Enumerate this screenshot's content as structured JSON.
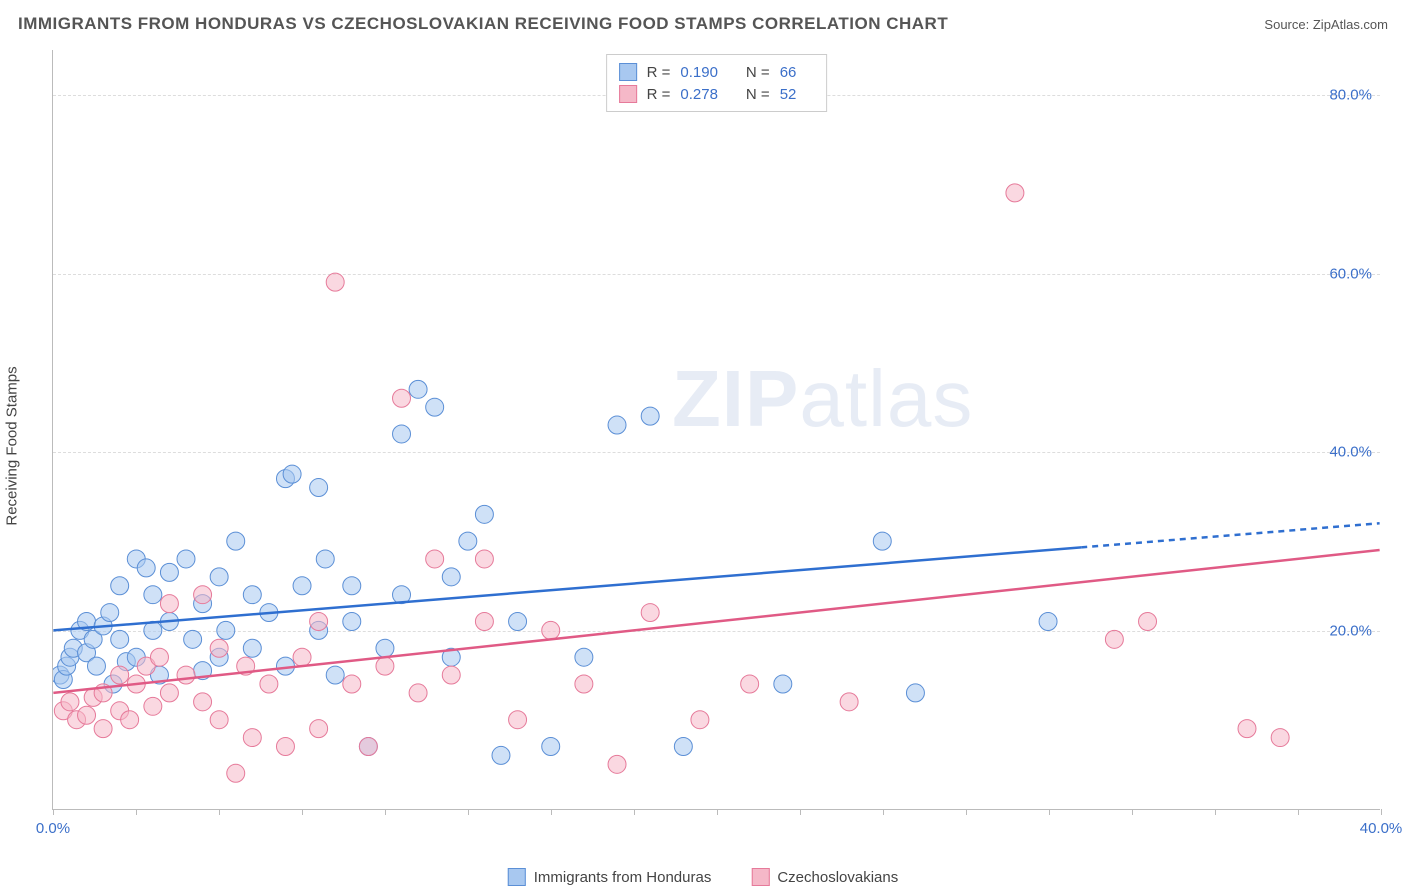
{
  "header": {
    "title": "IMMIGRANTS FROM HONDURAS VS CZECHOSLOVAKIAN RECEIVING FOOD STAMPS CORRELATION CHART",
    "source_label": "Source:",
    "source_name": "ZipAtlas.com"
  },
  "watermark": {
    "zip": "ZIP",
    "atlas": "atlas"
  },
  "chart": {
    "type": "scatter",
    "y_axis_label": "Receiving Food Stamps",
    "background_color": "#ffffff",
    "grid_color": "#dddddd",
    "axis_color": "#bbbbbb",
    "tick_label_color": "#3b6fc9",
    "xlim": [
      0,
      40
    ],
    "ylim": [
      0,
      85
    ],
    "x_ticks": [
      {
        "value": 0,
        "label": "0.0%"
      },
      {
        "value": 40,
        "label": "40.0%"
      }
    ],
    "y_ticks": [
      {
        "value": 20,
        "label": "20.0%"
      },
      {
        "value": 40,
        "label": "40.0%"
      },
      {
        "value": 60,
        "label": "60.0%"
      },
      {
        "value": 80,
        "label": "80.0%"
      }
    ],
    "x_minor_tick_step": 2.5,
    "marker_radius": 9,
    "marker_opacity": 0.55,
    "series": [
      {
        "name": "Immigrants from Honduras",
        "fill_color": "#a8c8f0",
        "stroke_color": "#5b8fd6",
        "line_color": "#2f6fd0",
        "line_width": 2.5,
        "r_label": "R =",
        "r_value": "0.190",
        "n_label": "N =",
        "n_value": "66",
        "trend": {
          "x1": 0,
          "y1": 20,
          "x2": 40,
          "y2": 32,
          "dash_after_x": 31
        },
        "points": [
          [
            0.2,
            15
          ],
          [
            0.3,
            14.5
          ],
          [
            0.4,
            16
          ],
          [
            0.5,
            17
          ],
          [
            0.6,
            18
          ],
          [
            0.8,
            20
          ],
          [
            1.0,
            17.5
          ],
          [
            1.0,
            21
          ],
          [
            1.2,
            19
          ],
          [
            1.3,
            16
          ],
          [
            1.5,
            20.5
          ],
          [
            1.7,
            22
          ],
          [
            1.8,
            14
          ],
          [
            2.0,
            25
          ],
          [
            2.0,
            19
          ],
          [
            2.2,
            16.5
          ],
          [
            2.5,
            28
          ],
          [
            2.5,
            17
          ],
          [
            2.8,
            27
          ],
          [
            3.0,
            20
          ],
          [
            3.0,
            24
          ],
          [
            3.2,
            15
          ],
          [
            3.5,
            21
          ],
          [
            3.5,
            26.5
          ],
          [
            4.0,
            28
          ],
          [
            4.2,
            19
          ],
          [
            4.5,
            23
          ],
          [
            4.5,
            15.5
          ],
          [
            5.0,
            26
          ],
          [
            5.0,
            17
          ],
          [
            5.2,
            20
          ],
          [
            5.5,
            30
          ],
          [
            6.0,
            18
          ],
          [
            6.0,
            24
          ],
          [
            6.5,
            22
          ],
          [
            7.0,
            37
          ],
          [
            7.2,
            37.5
          ],
          [
            7.0,
            16
          ],
          [
            7.5,
            25
          ],
          [
            8.0,
            20
          ],
          [
            8.0,
            36
          ],
          [
            8.2,
            28
          ],
          [
            8.5,
            15
          ],
          [
            9.0,
            21
          ],
          [
            9.0,
            25
          ],
          [
            9.5,
            7
          ],
          [
            10.0,
            18
          ],
          [
            10.5,
            42
          ],
          [
            10.5,
            24
          ],
          [
            11.0,
            47
          ],
          [
            11.5,
            45
          ],
          [
            12.0,
            17
          ],
          [
            12.0,
            26
          ],
          [
            12.5,
            30
          ],
          [
            13.0,
            33
          ],
          [
            13.5,
            6
          ],
          [
            14.0,
            21
          ],
          [
            15.0,
            7
          ],
          [
            16.0,
            17
          ],
          [
            17.0,
            43
          ],
          [
            18.0,
            44
          ],
          [
            19.0,
            7
          ],
          [
            22.0,
            14
          ],
          [
            25.0,
            30
          ],
          [
            26.0,
            13
          ],
          [
            30.0,
            21
          ]
        ]
      },
      {
        "name": "Czechoslovakians",
        "fill_color": "#f5b8c8",
        "stroke_color": "#e67a9a",
        "line_color": "#e05a85",
        "line_width": 2.5,
        "r_label": "R =",
        "r_value": "0.278",
        "n_label": "N =",
        "n_value": "52",
        "trend": {
          "x1": 0,
          "y1": 13,
          "x2": 40,
          "y2": 29,
          "dash_after_x": 40
        },
        "points": [
          [
            0.3,
            11
          ],
          [
            0.5,
            12
          ],
          [
            0.7,
            10
          ],
          [
            1.0,
            10.5
          ],
          [
            1.2,
            12.5
          ],
          [
            1.5,
            13
          ],
          [
            1.5,
            9
          ],
          [
            2.0,
            11
          ],
          [
            2.0,
            15
          ],
          [
            2.3,
            10
          ],
          [
            2.5,
            14
          ],
          [
            2.8,
            16
          ],
          [
            3.0,
            11.5
          ],
          [
            3.2,
            17
          ],
          [
            3.5,
            13
          ],
          [
            3.5,
            23
          ],
          [
            4.0,
            15
          ],
          [
            4.5,
            12
          ],
          [
            4.5,
            24
          ],
          [
            5.0,
            18
          ],
          [
            5.0,
            10
          ],
          [
            5.5,
            4
          ],
          [
            5.8,
            16
          ],
          [
            6.0,
            8
          ],
          [
            6.5,
            14
          ],
          [
            7.0,
            7
          ],
          [
            7.5,
            17
          ],
          [
            8.0,
            9
          ],
          [
            8.0,
            21
          ],
          [
            8.5,
            59
          ],
          [
            9.0,
            14
          ],
          [
            9.5,
            7
          ],
          [
            10.0,
            16
          ],
          [
            10.5,
            46
          ],
          [
            11.0,
            13
          ],
          [
            11.5,
            28
          ],
          [
            12.0,
            15
          ],
          [
            13.0,
            28
          ],
          [
            13.0,
            21
          ],
          [
            14.0,
            10
          ],
          [
            15.0,
            20
          ],
          [
            16.0,
            14
          ],
          [
            17.0,
            5
          ],
          [
            18.0,
            22
          ],
          [
            19.5,
            10
          ],
          [
            21.0,
            14
          ],
          [
            24.0,
            12
          ],
          [
            29.0,
            69
          ],
          [
            32.0,
            19
          ],
          [
            33.0,
            21
          ],
          [
            36.0,
            9
          ],
          [
            37.0,
            8
          ]
        ]
      }
    ]
  }
}
